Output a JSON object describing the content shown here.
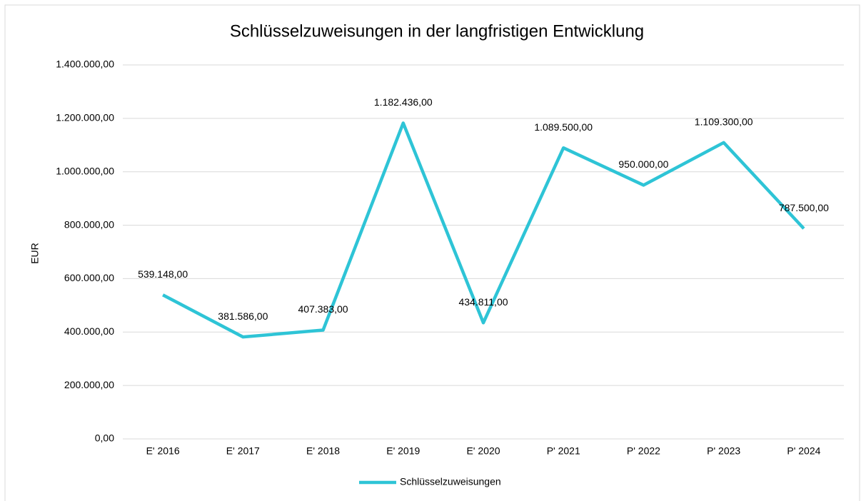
{
  "chart_data": {
    "type": "line",
    "title": "Schlüsselzuweisungen in der langfristigen Entwicklung",
    "ylabel": "EUR",
    "categories": [
      "E' 2016",
      "E' 2017",
      "E' 2018",
      "E' 2019",
      "E' 2020",
      "P' 2021",
      "P' 2022",
      "P' 2023",
      "P' 2024"
    ],
    "series": [
      {
        "name": "Schlüsselzuweisungen",
        "color": "#2ec4d6",
        "values": [
          539148,
          381586,
          407383,
          1182436,
          434811,
          1089500,
          950000,
          1109300,
          787500
        ],
        "value_labels": [
          "539.148,00",
          "381.586,00",
          "407.383,00",
          "1.182.436,00",
          "434.811,00",
          "1.089.500,00",
          "950.000,00",
          "1.109.300,00",
          "787.500,00"
        ]
      }
    ],
    "ylim": [
      0,
      1400000
    ],
    "yticks": [
      {
        "value": 0,
        "label": "0,00"
      },
      {
        "value": 200000,
        "label": "200.000,00"
      },
      {
        "value": 400000,
        "label": "400.000,00"
      },
      {
        "value": 600000,
        "label": "600.000,00"
      },
      {
        "value": 800000,
        "label": "800.000,00"
      },
      {
        "value": 1000000,
        "label": "1.000.000,00"
      },
      {
        "value": 1200000,
        "label": "1.200.000,00"
      },
      {
        "value": 1400000,
        "label": "1.400.000,00"
      }
    ],
    "grid": true,
    "legend": "bottom"
  }
}
